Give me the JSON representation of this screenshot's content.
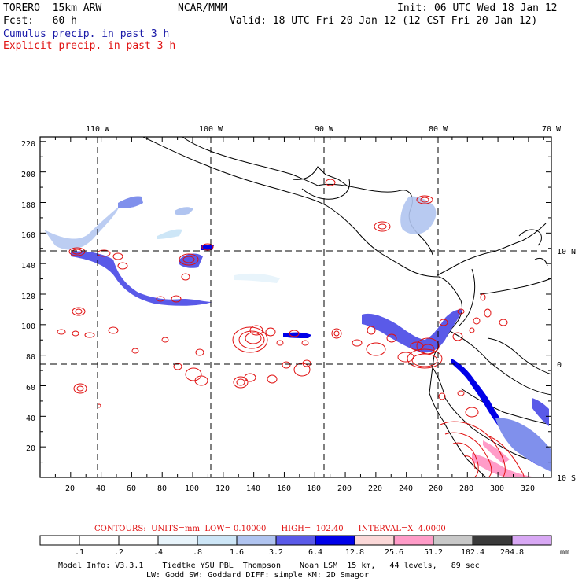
{
  "header": {
    "model": "TORERO  15km ARW",
    "forecast": "Fcst:   60 h",
    "center": "NCAR/MMM",
    "init": "Init: 06 UTC Wed 18 Jan 12",
    "valid": "Valid: 18 UTC Fri 20 Jan 12 (12 CST Fri 20 Jan 12)",
    "field1": "Cumulus precip. in past 3 h",
    "field2": "Explicit precip. in past 3 h",
    "field1_color": "#1a1aa8",
    "field2_color": "#e01010"
  },
  "map": {
    "top_lon_labels": [
      "110 W",
      "100 W",
      "90 W",
      "80 W",
      "70 W"
    ],
    "right_lat_labels": [
      "10 N",
      "0",
      "10 S"
    ],
    "y_ticks": [
      "220",
      "200",
      "180",
      "160",
      "140",
      "120",
      "100",
      "80",
      "60",
      "40",
      "20"
    ],
    "x_ticks": [
      "20",
      "40",
      "60",
      "80",
      "100",
      "120",
      "140",
      "160",
      "180",
      "200",
      "220",
      "240",
      "260",
      "280",
      "300",
      "320"
    ]
  },
  "contours": {
    "text": "CONTOURS:  UNITS=mm  LOW= 0.10000      HIGH=  102.40      INTERVAL=X  4.0000"
  },
  "legend": {
    "unit": "mm",
    "labels": [
      ".1",
      ".2",
      ".4",
      ".8",
      "1.6",
      "3.2",
      "6.4",
      "12.8",
      "25.6",
      "51.2",
      "102.4",
      "204.8"
    ],
    "colors": [
      "#ffffff",
      "#ffffff",
      "#ffffff",
      "#e8f4fb",
      "#cde6f7",
      "#b0c4f0",
      "#8090ec",
      "#5a5ae8",
      "#0000e8",
      "#fbd8d8",
      "#ff9cc8",
      "#c8c8c8",
      "#3a3a3a",
      "#d8a8f4"
    ]
  },
  "footer": {
    "line1": "Model Info: V3.3.1    Tiedtke YSU PBL  Thompson    Noah LSM  15 km,   44 levels,   89 sec",
    "line2": "LW: Godd SW: Goddard DIFF: simple KM: 2D Smagor"
  }
}
